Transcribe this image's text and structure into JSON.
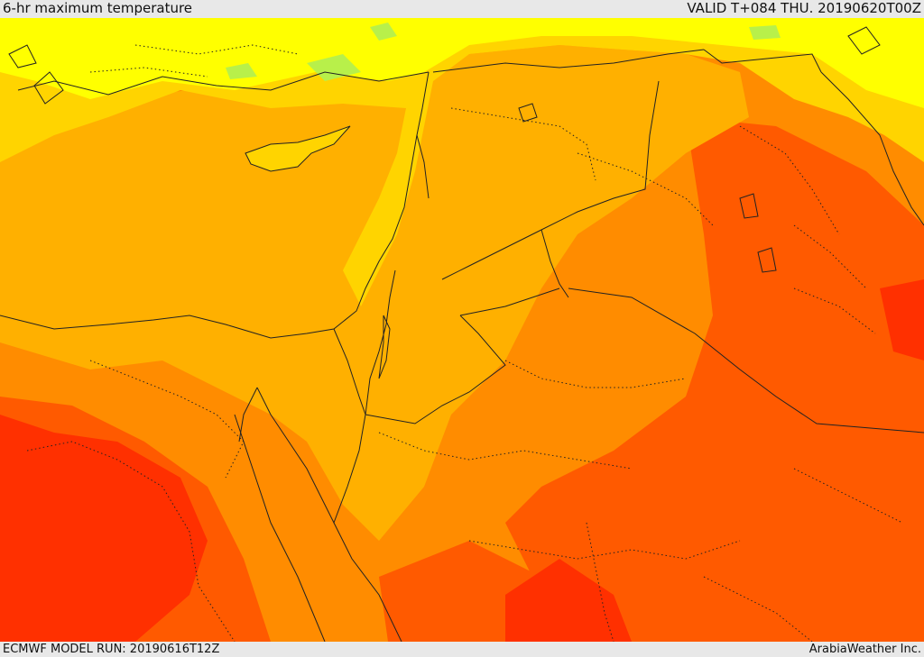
{
  "header": {
    "title": "6-hr maximum temperature",
    "valid_time": "VALID T+084 THU. 20190620T00Z"
  },
  "footer": {
    "model_run": "ECMWF MODEL RUN: 20190616T12Z",
    "credit": "ArabiaWeather Inc."
  },
  "palette": {
    "light_green": "#b8f04a",
    "yellow": "#ffff00",
    "gold": "#ffd400",
    "light_orange": "#ffb000",
    "orange": "#ff8c00",
    "dark_orange": "#ff5a00",
    "red_orange": "#ff3000"
  }
}
